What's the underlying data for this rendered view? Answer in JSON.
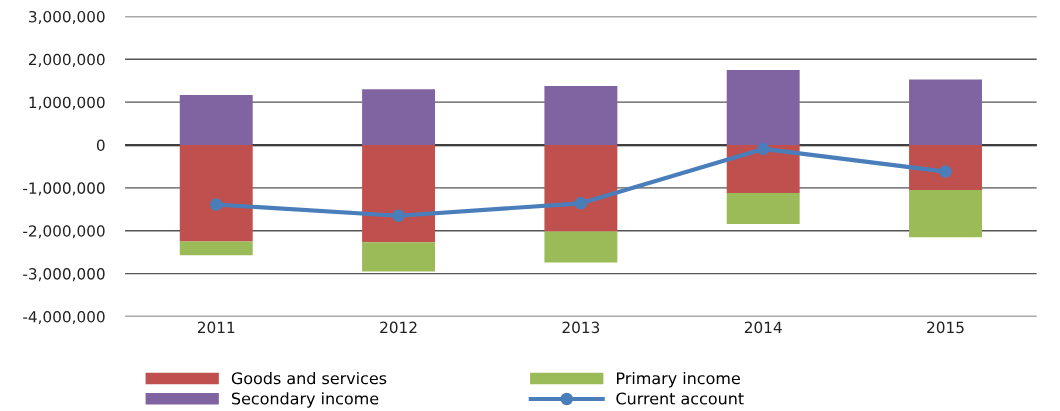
{
  "chart_data": {
    "type": "bar",
    "stacked": true,
    "categories": [
      "2011",
      "2012",
      "2013",
      "2014",
      "2015"
    ],
    "series": [
      {
        "name": "Goods and services",
        "color": "#c0504d",
        "values": [
          -2250000,
          -2270000,
          -2020000,
          -1120000,
          -1050000
        ]
      },
      {
        "name": "Primary income",
        "color": "#9bbb59",
        "values": [
          -320000,
          -680000,
          -720000,
          -720000,
          -1100000
        ]
      },
      {
        "name": "Secondary income",
        "color": "#8064a2",
        "values": [
          1170000,
          1300000,
          1375000,
          1750000,
          1530000
        ]
      },
      {
        "name": "Current account",
        "type": "line",
        "color": "#4a7ebb",
        "marker": "circle",
        "values": [
          -1390000,
          -1650000,
          -1360000,
          -90000,
          -620000
        ]
      }
    ],
    "ylim": [
      -4000000,
      3000000
    ],
    "yticks": [
      {
        "value": -4000000,
        "label": "-4,000,000"
      },
      {
        "value": -3000000,
        "label": "-3,000,000"
      },
      {
        "value": -2000000,
        "label": "-2,000,000"
      },
      {
        "value": -1000000,
        "label": "-1,000,000"
      },
      0,
      {
        "value": 1000000,
        "label": "1,000,000"
      },
      {
        "value": 2000000,
        "label": "2,000,000"
      },
      {
        "value": 3000000,
        "label": "3,000,000"
      }
    ],
    "grid": "y",
    "legend": "bottom"
  }
}
